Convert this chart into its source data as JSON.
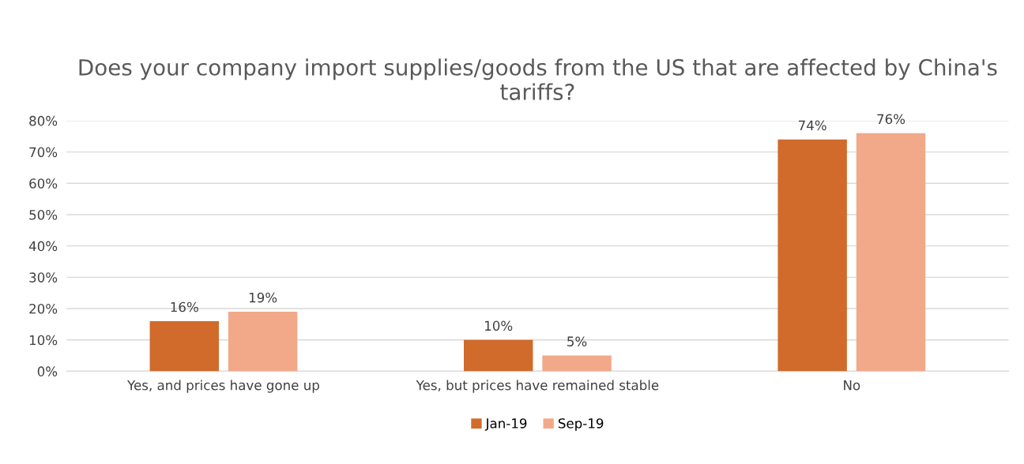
{
  "chart_data": {
    "type": "bar",
    "title": "Does your company import supplies/goods from the US that are affected by China's tariffs?",
    "categories": [
      "Yes, and prices have gone up",
      "Yes, but prices have remained stable",
      "No"
    ],
    "series": [
      {
        "name": "Jan-19",
        "color": "#d06b2c",
        "values": [
          16,
          10,
          74
        ],
        "value_labels": [
          "16%",
          "10%",
          "74%"
        ]
      },
      {
        "name": "Sep-19",
        "color": "#f1a98a",
        "values": [
          19,
          5,
          76
        ],
        "value_labels": [
          "19%",
          "5%",
          "76%"
        ]
      }
    ],
    "ylim": [
      0,
      80
    ],
    "yticks": [
      {
        "value": 0,
        "label": "0%"
      },
      {
        "value": 10,
        "label": "10%"
      },
      {
        "value": 20,
        "label": "20%"
      },
      {
        "value": 30,
        "label": "30%"
      },
      {
        "value": 40,
        "label": "40%"
      },
      {
        "value": 50,
        "label": "50%"
      },
      {
        "value": 60,
        "label": "60%"
      },
      {
        "value": 70,
        "label": "70%"
      },
      {
        "value": 80,
        "label": "80%"
      }
    ],
    "grid": "y",
    "legend": "bottom"
  }
}
